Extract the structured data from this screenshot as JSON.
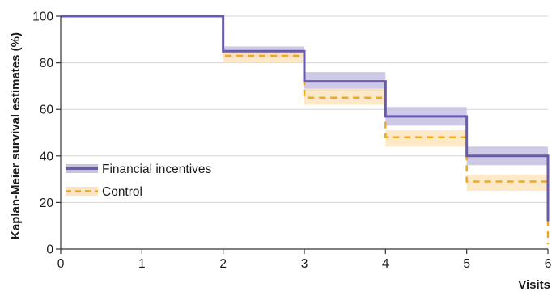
{
  "chart_data": {
    "type": "line",
    "step": true,
    "xlabel": "Visits",
    "ylabel": "Kaplan-Meier survival estimates (%)",
    "xlim": [
      0,
      6
    ],
    "ylim": [
      0,
      100
    ],
    "x_ticks": [
      "0",
      "1",
      "2",
      "3",
      "4",
      "5",
      "6"
    ],
    "y_ticks": [
      "0",
      "20",
      "40",
      "60",
      "80",
      "100"
    ],
    "grid": "horizontal",
    "legend_position": "left",
    "series": [
      {
        "name": "Financial incentives",
        "color": "#6a5aad",
        "band_color": "#c9c3e3",
        "line_style": "solid",
        "x": [
          0,
          2,
          3,
          4,
          5,
          6
        ],
        "y": [
          100,
          85,
          72,
          57,
          40,
          12
        ],
        "ci_lower": [
          100,
          82,
          68,
          53,
          36,
          12
        ],
        "ci_upper": [
          100,
          87,
          76,
          61,
          44,
          12
        ]
      },
      {
        "name": "Control",
        "color": "#f0a820",
        "band_color": "#fde4bd",
        "line_style": "dashed",
        "x": [
          0,
          2,
          3,
          4,
          5,
          6
        ],
        "y": [
          100,
          83,
          65,
          48,
          29,
          2
        ],
        "ci_lower": [
          100,
          80,
          62,
          44,
          25,
          2
        ],
        "ci_upper": [
          100,
          85,
          69,
          51,
          32,
          2
        ]
      }
    ]
  }
}
